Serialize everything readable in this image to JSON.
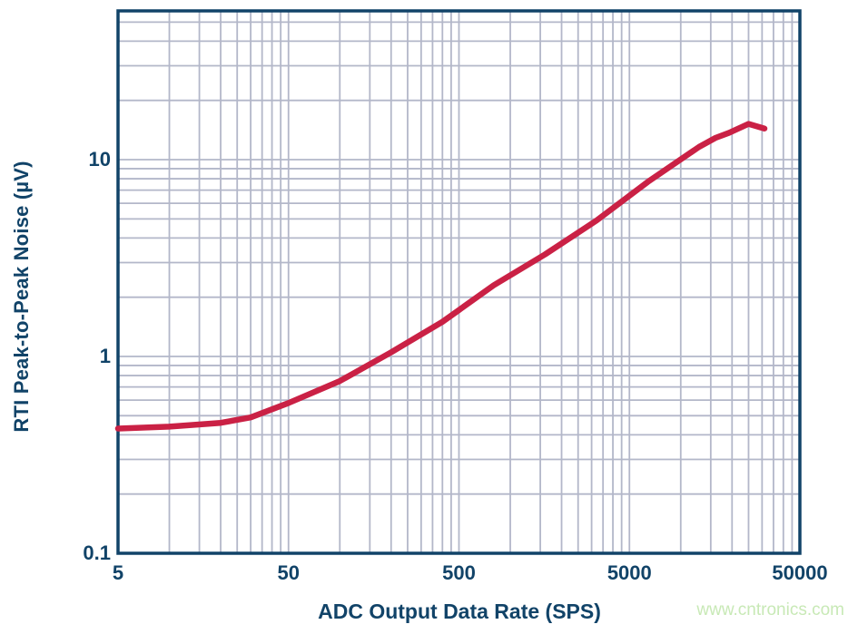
{
  "watermark": "www.cntronics.com",
  "colors": {
    "axis": "#114368",
    "grid": "#b3b7c9",
    "curve": "#ca2145",
    "watermark": "#c8e9b6",
    "background": "#ffffff"
  },
  "chart_data": {
    "type": "line",
    "title": "",
    "xlabel": "ADC Output Data Rate (SPS)",
    "ylabel": "RTI Peak-to-Peak Noise (µV)",
    "x_scale": "log",
    "y_scale": "log",
    "xlim": [
      5,
      50000
    ],
    "ylim": [
      0.1,
      57
    ],
    "grid": "on",
    "legend": "none",
    "x_tick_values": [
      5,
      50,
      500,
      5000,
      50000
    ],
    "x_tick_labels": [
      "5",
      "50",
      "500",
      "5000",
      "50000"
    ],
    "y_tick_values": [
      10,
      1,
      0.1
    ],
    "y_tick_labels": [
      "10",
      "1",
      "0.1"
    ],
    "series": [
      {
        "name": "RTI peak-to-peak noise",
        "color": "#ca2145",
        "points": [
          [
            5,
            0.43
          ],
          [
            10,
            0.44
          ],
          [
            20,
            0.46
          ],
          [
            30,
            0.49
          ],
          [
            50,
            0.58
          ],
          [
            100,
            0.75
          ],
          [
            200,
            1.05
          ],
          [
            400,
            1.5
          ],
          [
            800,
            2.3
          ],
          [
            1600,
            3.3
          ],
          [
            3200,
            4.9
          ],
          [
            6400,
            7.7
          ],
          [
            12800,
            11.6
          ],
          [
            16000,
            12.9
          ],
          [
            19200,
            13.7
          ],
          [
            25000,
            15.2
          ],
          [
            31000,
            14.4
          ]
        ]
      }
    ]
  }
}
